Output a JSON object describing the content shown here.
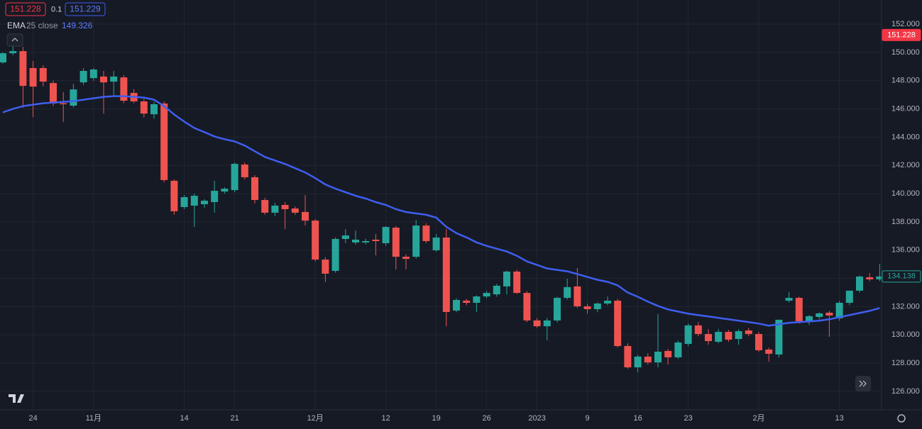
{
  "quote": {
    "bid": "151.228",
    "spread": "0.1",
    "ask": "151.229"
  },
  "chart_data": {
    "type": "candlestick",
    "categories": [
      null,
      null,
      null,
      "24",
      null,
      null,
      null,
      null,
      null,
      "11月",
      null,
      null,
      null,
      null,
      null,
      null,
      null,
      null,
      "14",
      null,
      null,
      null,
      null,
      "21",
      null,
      null,
      null,
      null,
      null,
      null,
      null,
      "12月",
      null,
      null,
      null,
      null,
      null,
      null,
      "12",
      null,
      null,
      null,
      null,
      "19",
      null,
      null,
      null,
      null,
      "26",
      null,
      null,
      null,
      null,
      "2023",
      null,
      null,
      null,
      null,
      "9",
      null,
      null,
      null,
      null,
      "16",
      null,
      null,
      null,
      null,
      "23",
      null,
      null,
      null,
      null,
      null,
      null,
      "2月",
      null,
      null,
      null,
      null,
      null,
      null,
      null,
      "13",
      null,
      null,
      null,
      null
    ],
    "open": [
      149.29,
      149.94,
      150.09,
      148.89,
      148.89,
      147.83,
      146.4,
      146.23,
      147.88,
      148.18,
      148.29,
      147.93,
      148.23,
      147.13,
      146.53,
      145.62,
      146.38,
      140.91,
      139.05,
      139.15,
      139.25,
      139.4,
      140.15,
      140.25,
      142.06,
      141.16,
      139.55,
      138.65,
      139.2,
      138.95,
      138.7,
      138.09,
      135.33,
      134.53,
      136.79,
      136.54,
      136.54,
      136.74,
      136.49,
      137.59,
      135.53,
      135.53,
      137.74,
      135.99,
      136.89,
      131.72,
      132.42,
      132.27,
      132.72,
      132.87,
      133.43,
      134.48,
      132.97,
      131.02,
      130.61,
      131.02,
      132.62,
      133.43,
      132.02,
      131.82,
      132.22,
      132.42,
      129.21,
      127.7,
      128.46,
      128.05,
      128.86,
      128.41,
      129.36,
      130.67,
      130.06,
      129.51,
      130.21,
      129.71,
      130.31,
      130.06,
      128.96,
      128.61,
      132.42,
      132.62,
      130.97,
      131.27,
      131.57,
      131.17,
      132.27,
      133.13,
      134.08,
      133.93
    ],
    "high": [
      150.0,
      150.54,
      150.39,
      149.39,
      149.09,
      148.0,
      147.18,
      147.78,
      148.89,
      148.89,
      148.69,
      148.69,
      148.4,
      147.4,
      146.7,
      146.5,
      146.53,
      141.0,
      139.9,
      140.0,
      139.6,
      140.91,
      140.45,
      142.2,
      142.2,
      141.3,
      139.7,
      139.35,
      139.4,
      139.1,
      139.9,
      138.2,
      135.5,
      136.9,
      137.49,
      137.39,
      136.8,
      137.14,
      137.7,
      137.7,
      135.7,
      138.14,
      137.9,
      137.14,
      137.49,
      132.6,
      132.55,
      132.8,
      133.1,
      133.6,
      134.55,
      134.6,
      133.1,
      131.2,
      131.2,
      132.7,
      133.98,
      134.73,
      132.2,
      132.3,
      132.72,
      132.55,
      129.4,
      128.6,
      128.7,
      131.47,
      129.0,
      129.6,
      130.8,
      130.9,
      130.4,
      130.4,
      130.35,
      130.4,
      130.5,
      130.2,
      129.1,
      131.07,
      133.02,
      132.7,
      131.4,
      131.6,
      131.7,
      132.4,
      133.13,
      134.2,
      134.38,
      135.03
    ],
    "low": [
      149.2,
      149.8,
      146.08,
      145.42,
      147.6,
      146.2,
      145.07,
      146.1,
      147.7,
      148.0,
      145.67,
      146.93,
      146.4,
      146.4,
      145.4,
      145.3,
      140.8,
      138.5,
      138.9,
      137.64,
      139.0,
      138.65,
      140.0,
      140.1,
      141.0,
      139.3,
      138.5,
      138.4,
      137.49,
      138.5,
      137.74,
      135.2,
      133.73,
      134.4,
      136.5,
      136.39,
      136.4,
      135.63,
      136.3,
      134.63,
      134.63,
      135.4,
      136.5,
      135.9,
      130.61,
      131.6,
      132.1,
      131.62,
      132.6,
      132.7,
      132.87,
      132.9,
      130.9,
      130.5,
      129.61,
      130.9,
      132.5,
      131.9,
      131.5,
      131.6,
      132.1,
      129.1,
      127.6,
      127.35,
      127.9,
      127.7,
      127.9,
      128.3,
      129.2,
      129.9,
      129.3,
      129.4,
      129.5,
      129.3,
      129.9,
      128.8,
      128.1,
      128.4,
      132.3,
      130.8,
      130.7,
      131.1,
      129.86,
      131.0,
      132.1,
      133.0,
      133.8,
      133.8
    ],
    "close": [
      149.94,
      150.09,
      147.63,
      147.58,
      147.93,
      146.38,
      146.33,
      147.38,
      148.69,
      148.79,
      147.88,
      148.29,
      146.58,
      146.53,
      145.67,
      146.33,
      140.96,
      138.75,
      139.75,
      139.85,
      139.5,
      140.2,
      140.35,
      142.11,
      141.16,
      139.55,
      138.65,
      139.15,
      138.9,
      138.65,
      138.09,
      135.33,
      134.33,
      136.79,
      137.04,
      136.74,
      136.64,
      136.64,
      137.64,
      135.53,
      135.38,
      137.74,
      136.64,
      136.89,
      131.62,
      132.47,
      132.27,
      132.72,
      132.97,
      133.48,
      134.48,
      132.97,
      131.02,
      130.61,
      131.02,
      132.62,
      133.38,
      132.02,
      131.82,
      132.22,
      132.42,
      129.21,
      127.7,
      128.46,
      128.05,
      128.81,
      128.41,
      129.46,
      130.67,
      130.06,
      129.56,
      130.21,
      129.66,
      130.26,
      130.06,
      128.91,
      128.66,
      131.07,
      132.62,
      130.97,
      131.32,
      131.52,
      131.37,
      132.27,
      133.13,
      134.13,
      133.93,
      134.138
    ],
    "up_color": "#26a69a",
    "down_color": "#ef5350",
    "overlays": [
      {
        "type": "line",
        "name": "EMA",
        "params": "25 close",
        "value_label": "149.326",
        "color": "#3f5ef0",
        "values": [
          145.75,
          146.0,
          146.2,
          146.3,
          146.4,
          146.45,
          146.5,
          146.55,
          146.65,
          146.75,
          146.85,
          146.9,
          146.9,
          146.85,
          146.8,
          146.65,
          146.2,
          145.6,
          145.1,
          144.65,
          144.35,
          144.05,
          143.85,
          143.7,
          143.4,
          143.0,
          142.6,
          142.35,
          142.1,
          141.8,
          141.5,
          141.1,
          140.65,
          140.35,
          140.1,
          139.85,
          139.65,
          139.4,
          139.2,
          138.9,
          138.7,
          138.6,
          138.5,
          138.3,
          137.65,
          137.2,
          136.9,
          136.55,
          136.3,
          136.1,
          135.9,
          135.6,
          135.2,
          134.95,
          134.7,
          134.6,
          134.5,
          134.3,
          134.1,
          133.9,
          133.75,
          133.5,
          133.0,
          132.7,
          132.35,
          132.05,
          131.8,
          131.65,
          131.5,
          131.4,
          131.3,
          131.2,
          131.1,
          131.0,
          130.9,
          130.8,
          130.65,
          130.75,
          130.85,
          130.9,
          130.95,
          131.0,
          131.1,
          131.25,
          131.4,
          131.55,
          131.7,
          131.9
        ]
      }
    ],
    "ylim": [
      124.69,
      153.71
    ],
    "yticks": [
      {
        "value": 126,
        "label": "126.000"
      },
      {
        "value": 128,
        "label": "128.000"
      },
      {
        "value": 130,
        "label": "130.000"
      },
      {
        "value": 132,
        "label": "132.000"
      },
      {
        "value": 134,
        "label": "134.000"
      },
      {
        "value": 136,
        "label": "136.000"
      },
      {
        "value": 138,
        "label": "138.000"
      },
      {
        "value": 140,
        "label": "140.000"
      },
      {
        "value": 142,
        "label": "142.000"
      },
      {
        "value": 144,
        "label": "144.000"
      },
      {
        "value": 146,
        "label": "146.000"
      },
      {
        "value": 148,
        "label": "148.000"
      },
      {
        "value": 150,
        "label": "150.000"
      },
      {
        "value": 152,
        "label": "152.000"
      }
    ],
    "grid": true,
    "price_tags": [
      {
        "value": 151.228,
        "label": "151.228",
        "color": "#f23645"
      },
      {
        "value": 134.138,
        "label": "134.138",
        "color": "#26a69a"
      }
    ]
  }
}
